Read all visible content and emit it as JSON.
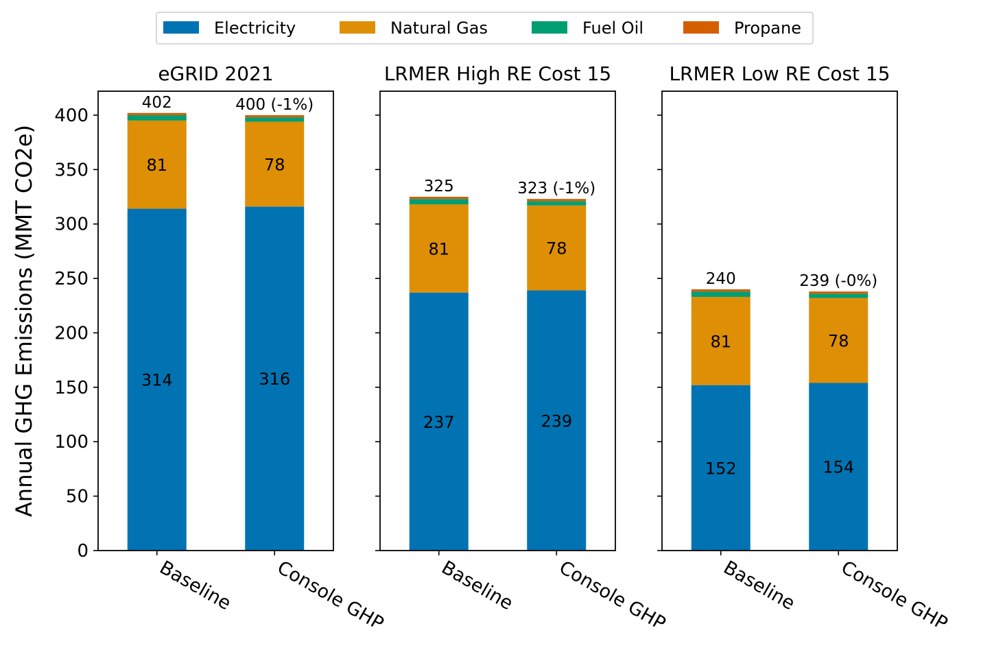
{
  "chart_data": {
    "type": "bar",
    "stacked": true,
    "ylabel": "Annual GHG Emissions (MMT CO2e)",
    "ylim": [
      0,
      422
    ],
    "yticks": [
      0,
      50,
      100,
      150,
      200,
      250,
      300,
      350,
      400
    ],
    "legend": {
      "placement": "top-center",
      "entries": [
        "Electricity",
        "Natural Gas",
        "Fuel Oil",
        "Propane"
      ]
    },
    "colors": {
      "Electricity": "#0173b2",
      "Natural Gas": "#de8f05",
      "Fuel Oil": "#029e73",
      "Propane": "#d55e00"
    },
    "categories": [
      "Baseline",
      "Console GHP"
    ],
    "panels": [
      {
        "title": "eGRID 2021",
        "series": [
          {
            "name": "Electricity",
            "values": [
              314,
              316
            ]
          },
          {
            "name": "Natural Gas",
            "values": [
              81,
              78
            ]
          },
          {
            "name": "Fuel Oil",
            "values": [
              5,
              4
            ]
          },
          {
            "name": "Propane",
            "values": [
              2,
              2
            ]
          }
        ],
        "segment_labels": {
          "Electricity": [
            "314",
            "316"
          ],
          "Natural Gas": [
            "81",
            "78"
          ]
        },
        "total_labels": [
          "402",
          "400 (-1%)"
        ]
      },
      {
        "title": "LRMER High RE Cost 15",
        "series": [
          {
            "name": "Electricity",
            "values": [
              237,
              239
            ]
          },
          {
            "name": "Natural Gas",
            "values": [
              81,
              78
            ]
          },
          {
            "name": "Fuel Oil",
            "values": [
              5,
              4
            ]
          },
          {
            "name": "Propane",
            "values": [
              2,
              2
            ]
          }
        ],
        "segment_labels": {
          "Electricity": [
            "237",
            "239"
          ],
          "Natural Gas": [
            "81",
            "78"
          ]
        },
        "total_labels": [
          "325",
          "323 (-1%)"
        ]
      },
      {
        "title": "LRMER Low RE Cost 15",
        "series": [
          {
            "name": "Electricity",
            "values": [
              152,
              154
            ]
          },
          {
            "name": "Natural Gas",
            "values": [
              81,
              78
            ]
          },
          {
            "name": "Fuel Oil",
            "values": [
              5,
              4
            ]
          },
          {
            "name": "Propane",
            "values": [
              2,
              2
            ]
          }
        ],
        "segment_labels": {
          "Electricity": [
            "152",
            "154"
          ],
          "Natural Gas": [
            "81",
            "78"
          ]
        },
        "total_labels": [
          "240",
          "239 (-0%)"
        ]
      }
    ]
  }
}
